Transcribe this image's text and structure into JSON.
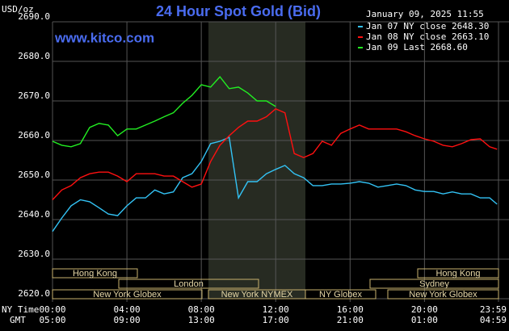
{
  "chart_data": {
    "type": "line",
    "title": "24 Hour Spot Gold (Bid)",
    "subtitle": "January 09, 2025 11:55",
    "watermark": "www.kitco.com",
    "ylabel": "USD/oz",
    "xrow_labels": [
      "NY Time",
      "GMT"
    ],
    "x": [
      0,
      0.5,
      1,
      1.5,
      2,
      2.5,
      3,
      3.5,
      4,
      4.5,
      5,
      5.5,
      6,
      6.5,
      7,
      7.5,
      8,
      8.5,
      9,
      9.5,
      10,
      10.5,
      11,
      11.5,
      12,
      12.5,
      13,
      13.5,
      14,
      14.5,
      15,
      15.5,
      16,
      16.5,
      17,
      17.5,
      18,
      18.5,
      19,
      19.5,
      20,
      20.5,
      21,
      21.5,
      22,
      22.5,
      23,
      23.5,
      23.9
    ],
    "xlim": [
      0,
      23.98
    ],
    "xticks": [
      {
        "value": 0,
        "label": "00:00"
      },
      {
        "value": 4,
        "label": "04:00"
      },
      {
        "value": 8,
        "label": "08:00"
      },
      {
        "value": 12,
        "label": "12:00"
      },
      {
        "value": 16,
        "label": "16:00"
      },
      {
        "value": 20,
        "label": "20:00"
      },
      {
        "value": 23.98,
        "label": "23:59"
      }
    ],
    "xticks_gmt": [
      {
        "value": 0,
        "label": "05:00"
      },
      {
        "value": 4,
        "label": "09:00"
      },
      {
        "value": 8,
        "label": "13:00"
      },
      {
        "value": 12,
        "label": "17:00"
      },
      {
        "value": 16,
        "label": "21:00"
      },
      {
        "value": 20,
        "label": "01:00"
      },
      {
        "value": 23.98,
        "label": "04:59"
      }
    ],
    "ylim": [
      2620,
      2690
    ],
    "yticks": [
      {
        "value": 2620,
        "label": "2620.0"
      },
      {
        "value": 2630,
        "label": "2630.0"
      },
      {
        "value": 2640,
        "label": "2640.0"
      },
      {
        "value": 2650,
        "label": "2650.0"
      },
      {
        "value": 2660,
        "label": "2660.0"
      },
      {
        "value": 2670,
        "label": "2670.0"
      },
      {
        "value": 2680,
        "label": "2680.0"
      },
      {
        "value": 2690,
        "label": "2690.0"
      }
    ],
    "grid": true,
    "sessions": [
      "Hong Kong",
      "Hong Kong",
      "London",
      "Sydney",
      "New York Globex",
      "New York NYMEX",
      "NY Globex",
      "New York Globex"
    ],
    "series": [
      {
        "name": "Jan 07 NY close 2648.30",
        "color": "#33c3f5",
        "values": [
          2637,
          2640.4,
          2643.5,
          2645,
          2644.5,
          2643,
          2641.4,
          2641,
          2643.5,
          2645.5,
          2645.5,
          2647.5,
          2646.5,
          2647,
          2650.6,
          2651.6,
          2654.7,
          2659.2,
          2659.8,
          2660.8,
          2645.5,
          2649.6,
          2649.6,
          2651.6,
          2652.7,
          2653.7,
          2651.6,
          2650.6,
          2648.6,
          2648.6,
          2649,
          2649,
          2649.2,
          2649.6,
          2649.2,
          2648.2,
          2648.6,
          2649,
          2648.6,
          2647.5,
          2647.1,
          2647.1,
          2646.5,
          2647,
          2646.5,
          2646.5,
          2645.5,
          2645.5,
          2643.9
        ]
      },
      {
        "name": "Jan 08 NY close 2663.10",
        "color": "#ff1010",
        "values": [
          2645,
          2647.5,
          2648.6,
          2650.6,
          2651.6,
          2652,
          2652,
          2651,
          2649.6,
          2651.6,
          2651.6,
          2651.6,
          2651,
          2651,
          2649.6,
          2648.2,
          2649,
          2654.7,
          2658.8,
          2661.2,
          2663.3,
          2664.9,
          2664.9,
          2666,
          2668,
          2667,
          2656.7,
          2655.7,
          2656.7,
          2659.8,
          2658.8,
          2661.8,
          2662.9,
          2663.9,
          2662.9,
          2662.9,
          2662.9,
          2662.9,
          2662.2,
          2661.2,
          2660.4,
          2659.8,
          2658.8,
          2658.4,
          2659.2,
          2660.2,
          2660.4,
          2658.4,
          2657.8
        ]
      },
      {
        "name": "Jan 09 Last 2668.60",
        "color": "#22ee22",
        "values": [
          2659.8,
          2658.8,
          2658.4,
          2659.2,
          2663.3,
          2664.3,
          2663.9,
          2661.2,
          2662.9,
          2662.9,
          2663.9,
          2664.9,
          2666,
          2667,
          2669.4,
          2671.4,
          2674.1,
          2673.5,
          2676.1,
          2673.1,
          2673.5,
          2672,
          2670,
          2670,
          2668.6,
          null,
          null,
          null,
          null,
          null,
          null,
          null,
          null,
          null,
          null,
          null,
          null,
          null,
          null,
          null,
          null,
          null,
          null,
          null,
          null,
          null,
          null,
          null,
          null
        ]
      }
    ]
  }
}
